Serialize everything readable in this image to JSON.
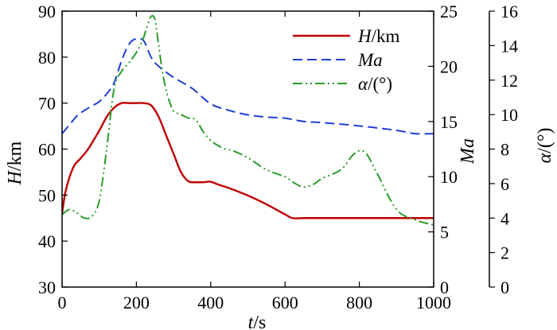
{
  "chart_data": {
    "type": "line",
    "title": "",
    "xlabel": {
      "italic": "t",
      "rest": "/s"
    },
    "xlim": [
      0,
      1000
    ],
    "xticks": [
      0,
      200,
      400,
      600,
      800,
      1000
    ],
    "axes": {
      "left": {
        "label_italic": "H",
        "label_rest": "/km",
        "ylim": [
          30,
          90
        ],
        "ticks": [
          30,
          40,
          50,
          60,
          70,
          80,
          90
        ]
      },
      "right1": {
        "label_italic": "Ma",
        "label_rest": "",
        "ylim": [
          0,
          25
        ],
        "ticks": [
          0,
          5,
          10,
          15,
          20,
          25
        ]
      },
      "right2": {
        "label_italic": "α",
        "label_rest": "/(°)",
        "ylim": [
          0,
          16
        ],
        "ticks": [
          0,
          2,
          4,
          6,
          8,
          10,
          12,
          14,
          16
        ]
      }
    },
    "legend_position": "top-right",
    "grid": false,
    "series": [
      {
        "name": "H/km",
        "name_italic": "H",
        "name_rest": "/km",
        "axis": "left",
        "color": "#c00000",
        "dash": "solid",
        "x": [
          0,
          10,
          30,
          50,
          70,
          100,
          120,
          140,
          160,
          180,
          200,
          220,
          240,
          260,
          280,
          300,
          320,
          340,
          360,
          380,
          400,
          420,
          450,
          500,
          550,
          600,
          620,
          650,
          700,
          800,
          900,
          1000
        ],
        "y": [
          46,
          51,
          56,
          58,
          60,
          64,
          67,
          69,
          70,
          70,
          70,
          70,
          69.5,
          67,
          63,
          59,
          55,
          53,
          52.8,
          52.8,
          52.9,
          52.3,
          51.5,
          49.9,
          48,
          45.8,
          45,
          45,
          45,
          45,
          45,
          45
        ]
      },
      {
        "name": "Ma",
        "name_italic": "Ma",
        "name_rest": "",
        "axis": "right1",
        "color": "#1f3fd6",
        "dash": "dashed",
        "x": [
          0,
          20,
          40,
          60,
          80,
          100,
          120,
          140,
          160,
          180,
          200,
          220,
          240,
          260,
          300,
          350,
          400,
          450,
          500,
          550,
          600,
          650,
          700,
          800,
          900,
          950,
          1000
        ],
        "y": [
          13.9,
          14.7,
          15.5,
          16,
          16.4,
          16.8,
          17.5,
          18.5,
          20.5,
          22,
          22.5,
          22.3,
          20.8,
          20,
          19,
          18,
          16.6,
          16,
          15.6,
          15.4,
          15.3,
          15,
          14.9,
          14.6,
          14.2,
          13.9,
          13.9
        ]
      },
      {
        "name": "α/(°)",
        "name_italic": "α",
        "name_rest": "/(°)",
        "axis": "right2",
        "color": "#2a9d2a",
        "dash": "dashdotdot",
        "x": [
          0,
          20,
          40,
          60,
          80,
          100,
          120,
          140,
          160,
          180,
          200,
          210,
          220,
          230,
          240,
          250,
          260,
          270,
          280,
          290,
          300,
          320,
          340,
          360,
          380,
          400,
          420,
          440,
          460,
          500,
          550,
          600,
          620,
          650,
          680,
          700,
          750,
          780,
          800,
          820,
          850,
          900,
          950,
          1000
        ],
        "y": [
          4.2,
          4.5,
          4.3,
          4,
          4.1,
          5,
          8,
          11.5,
          12.5,
          13,
          13.6,
          14,
          14.5,
          15.2,
          15.7,
          15.5,
          14,
          12.5,
          11.4,
          10.7,
          10.2,
          10,
          9.8,
          9.7,
          9,
          8.5,
          8.2,
          8,
          7.9,
          7.5,
          6.8,
          6.4,
          6.1,
          5.8,
          6,
          6.3,
          6.8,
          7.6,
          7.9,
          7.7,
          6.5,
          4.5,
          3.9,
          3.6
        ]
      }
    ]
  }
}
